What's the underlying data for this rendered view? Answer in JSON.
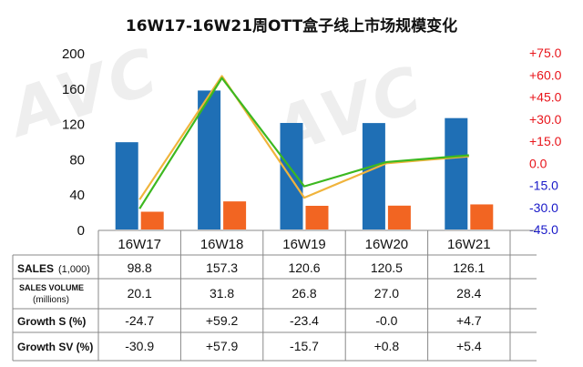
{
  "chart_data": {
    "type": "bar",
    "title": "16W17-16W21周OTT盒子线上市场规模变化",
    "categories": [
      "16W17",
      "16W18",
      "16W19",
      "16W20",
      "16W21"
    ],
    "left_axis": {
      "ticks": [
        "0",
        "40",
        "80",
        "120",
        "160",
        "200"
      ],
      "ylim": [
        0,
        200
      ]
    },
    "right_axis": {
      "ticks": [
        "-45.0",
        "-30.0",
        "-15.0",
        "0.0",
        "+15.0",
        "+30.0",
        "+45.0",
        "+60.0",
        "+75.0"
      ],
      "ylim": [
        -45,
        75
      ]
    },
    "series": [
      {
        "name": "SALES(1,000)",
        "type": "bar",
        "axis": "left",
        "values": [
          98.8,
          157.3,
          120.6,
          120.5,
          126.1
        ]
      },
      {
        "name": "SALES VOLUME (millions)",
        "type": "bar",
        "axis": "left",
        "values": [
          20.1,
          31.8,
          26.8,
          27.0,
          28.4
        ]
      },
      {
        "name": "Growth S (%)",
        "type": "line",
        "axis": "right",
        "values": [
          -24.7,
          59.2,
          -23.4,
          -0.0,
          4.7
        ]
      },
      {
        "name": "Growth SV (%)",
        "type": "line",
        "axis": "right",
        "values": [
          -30.9,
          57.9,
          -15.7,
          0.8,
          5.4
        ]
      }
    ],
    "table": {
      "row_labels": [
        {
          "main": "SALES",
          "sub": "(1,000)"
        },
        {
          "main": "SALES VOLUME",
          "sub": "(millions)"
        },
        {
          "main": "Growth S (%)",
          "sub": ""
        },
        {
          "main": "Growth SV (%)",
          "sub": ""
        }
      ],
      "rows": [
        [
          "98.8",
          "157.3",
          "120.6",
          "120.5",
          "126.1"
        ],
        [
          "20.1",
          "31.8",
          "26.8",
          "27.0",
          "28.4"
        ],
        [
          "-24.7",
          "+59.2",
          "-23.4",
          "-0.0",
          "+4.7"
        ],
        [
          "-30.9",
          "+57.9",
          "-15.7",
          "+0.8",
          "+5.4"
        ]
      ]
    },
    "colors": {
      "bar_sales": "#1f6fb5",
      "bar_volume": "#f26522",
      "line_growth_s": "#f0b43c",
      "line_growth_sv": "#3cb820",
      "right_axis_positive": "#e8151b",
      "right_axis_negative": "#1818c8",
      "left_axis": "#111111"
    }
  },
  "watermark": "AVC"
}
